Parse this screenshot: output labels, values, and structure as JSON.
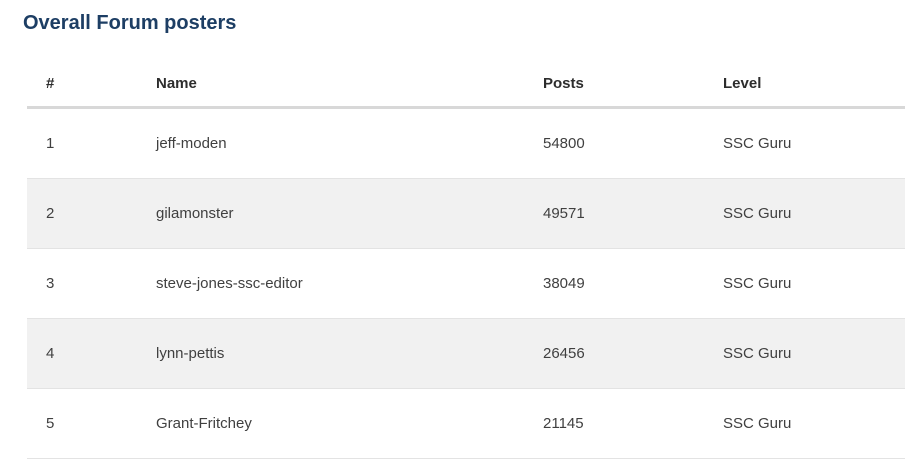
{
  "page": {
    "title": "Overall Forum posters"
  },
  "table": {
    "columns": [
      "#",
      "Name",
      "Posts",
      "Level"
    ],
    "rows": [
      {
        "rank": "1",
        "name": "jeff-moden",
        "posts": "54800",
        "level": "SSC Guru"
      },
      {
        "rank": "2",
        "name": "gilamonster",
        "posts": "49571",
        "level": "SSC Guru"
      },
      {
        "rank": "3",
        "name": "steve-jones-ssc-editor",
        "posts": "38049",
        "level": "SSC Guru"
      },
      {
        "rank": "4",
        "name": "lynn-pettis",
        "posts": "26456",
        "level": "SSC Guru"
      },
      {
        "rank": "5",
        "name": "Grant-Fritchey",
        "posts": "21145",
        "level": "SSC Guru"
      }
    ]
  },
  "colors": {
    "title_color": "#1d3e64",
    "header_text": "#2d2d2d",
    "body_text": "#404040",
    "stripe": "#f1f1f1",
    "header_border": "#d8d8d8",
    "row_border": "#e3e3e3",
    "page_bg": "#ffffff"
  }
}
